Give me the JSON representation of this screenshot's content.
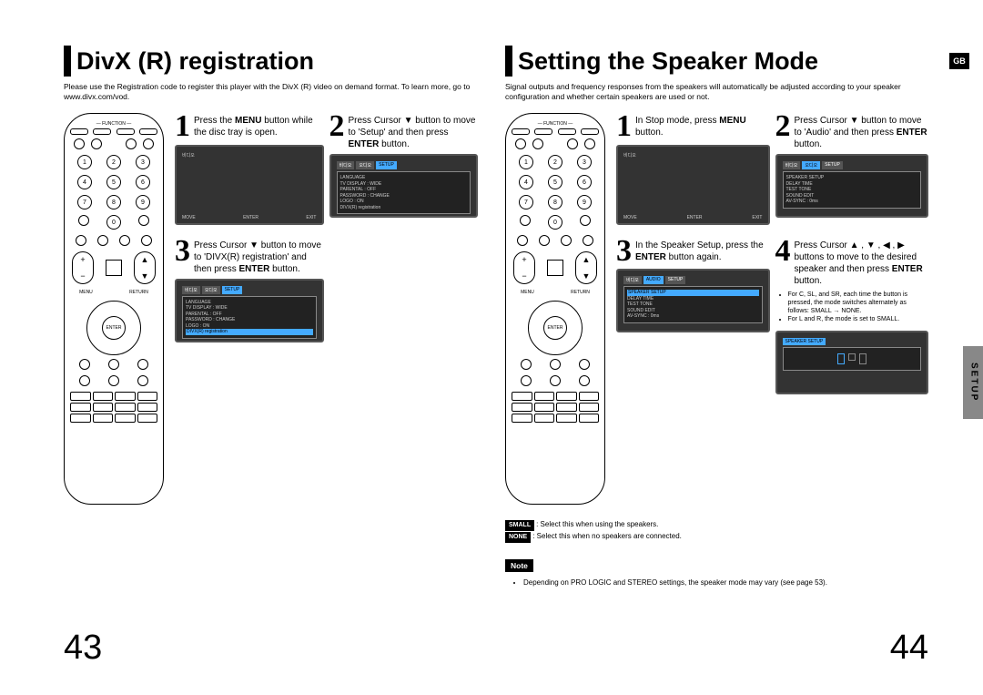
{
  "left": {
    "title": "DivX (R) registration",
    "intro": "Please use the Registration code to register this player with the DivX (R) video on demand format.\nTo learn more, go to www.divx.com/vod.",
    "steps": [
      {
        "num": "1",
        "text": "Press the <b>MENU</b> button while the disc tray is open."
      },
      {
        "num": "2",
        "text": "Press Cursor ▼ button to move to 'Setup' and then press <b>ENTER</b> button."
      },
      {
        "num": "3",
        "text": "Press Cursor ▼ button to move to 'DIVX(R) registration' and then press <b>ENTER</b> button."
      }
    ],
    "screen1_label": "비디오",
    "screen1_footer": [
      "MOVE",
      "ENTER",
      "EXIT"
    ],
    "screen2_items": [
      "LANGUAGE",
      "TV DISPLAY : WIDE",
      "PARENTAL : OFF",
      "PASSWORD : CHANGE",
      "LOGO : ON",
      "DIVX(R) registration"
    ],
    "pageNum": "43"
  },
  "right": {
    "title": "Setting the Speaker Mode",
    "gb": "GB",
    "intro": "Signal outputs and frequency responses from the speakers will automatically be adjusted according to your speaker configuration and whether certain speakers are used or not.",
    "steps": [
      {
        "num": "1",
        "text": "In Stop mode, press <b>MENU</b> button."
      },
      {
        "num": "2",
        "text": "Press Cursor ▼ button to move to 'Audio' and then press <b>ENTER</b> button."
      },
      {
        "num": "3",
        "text": "In the Speaker Setup, press the <b>ENTER</b> button again."
      },
      {
        "num": "4",
        "text": "Press Cursor ▲ , ▼ , ◀ , ▶ buttons to move to the desired speaker and then press <b>ENTER</b> button."
      }
    ],
    "screen1_label": "비디오",
    "screen1_footer": [
      "MOVE",
      "ENTER",
      "EXIT"
    ],
    "screen2_items": [
      "SPEAKER SETUP",
      "DELAY TIME",
      "TEST TONE",
      "SOUND EDIT",
      "AV-SYNC : 0ms"
    ],
    "screen3_items": [
      "SPEAKER SETUP",
      "DELAY TIME",
      "TEST TONE",
      "SOUND EDIT",
      "AV-SYNC : 0ms"
    ],
    "bullets": [
      "For C, SL, and SR, each time the button is pressed, the mode switches alternately as follows: SMALL → NONE.",
      "For L and R, the mode is set to SMALL."
    ],
    "legend": [
      {
        "chip": "SMALL",
        "text": ": Select this when using the speakers."
      },
      {
        "chip": "NONE",
        "text": ": Select this when no speakers are connected."
      }
    ],
    "noteLabel": "Note",
    "notes": [
      "Depending on PRO LOGIC and STEREO settings, the speaker mode may vary (see page 53)."
    ],
    "setupTab": "SETUP",
    "pageNum": "44"
  }
}
